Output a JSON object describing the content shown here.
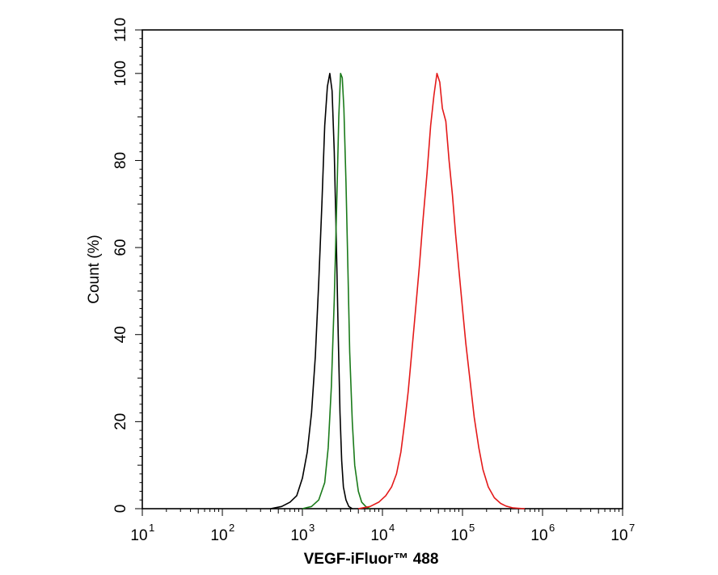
{
  "chart_data": {
    "type": "line",
    "title": "",
    "xlabel": "VEGF-iFluor™ 488",
    "ylabel": "Count  (%)",
    "x_scale": "log",
    "xlim": [
      10,
      10000000
    ],
    "ylim": [
      0,
      110
    ],
    "x_ticks": [
      {
        "base": "10",
        "exp": "1"
      },
      {
        "base": "10",
        "exp": "2"
      },
      {
        "base": "10",
        "exp": "3"
      },
      {
        "base": "10",
        "exp": "4"
      },
      {
        "base": "10",
        "exp": "5"
      },
      {
        "base": "10",
        "exp": "6"
      },
      {
        "base": "10",
        "exp": "7"
      }
    ],
    "y_ticks": [
      "0",
      "20",
      "40",
      "60",
      "80",
      "100",
      "110"
    ],
    "grid": false,
    "series": [
      {
        "color": "#000000",
        "x": [
          400,
          550,
          700,
          850,
          1000,
          1150,
          1300,
          1450,
          1600,
          1750,
          1900,
          2050,
          2200,
          2350,
          2500,
          2650,
          2800,
          2950,
          3100,
          3250,
          3500,
          3800,
          4200
        ],
        "y": [
          0,
          0.5,
          1.5,
          3,
          7,
          13,
          22,
          35,
          52,
          70,
          88,
          97,
          100,
          96,
          82,
          62,
          40,
          22,
          11,
          5,
          2,
          0.5,
          0
        ]
      },
      {
        "color": "#1a7a1a",
        "x": [
          1000,
          1300,
          1600,
          1900,
          2100,
          2300,
          2500,
          2700,
          2850,
          3000,
          3150,
          3300,
          3500,
          3700,
          3900,
          4200,
          4500,
          5000,
          5500,
          6200,
          7000
        ],
        "y": [
          0,
          0.5,
          2,
          6,
          14,
          28,
          48,
          72,
          90,
          100,
          99,
          92,
          75,
          55,
          36,
          20,
          10,
          4,
          1.5,
          0.5,
          0
        ]
      },
      {
        "color": "#e41a1a",
        "x": [
          5000,
          7000,
          9000,
          11000,
          13000,
          15000,
          17000,
          19000,
          21000,
          23000,
          26000,
          29000,
          32000,
          36000,
          40000,
          44000,
          48000,
          52000,
          56000,
          62000,
          68000,
          75000,
          82000,
          90000,
          100000,
          110000,
          125000,
          140000,
          160000,
          180000,
          210000,
          250000,
          300000,
          350000,
          420000,
          500000,
          600000
        ],
        "y": [
          0,
          0.5,
          1.5,
          3,
          5,
          8,
          13,
          20,
          27,
          35,
          46,
          56,
          66,
          77,
          88,
          95,
          100,
          98,
          92,
          89,
          80,
          72,
          63,
          55,
          46,
          38,
          29,
          21,
          14,
          9,
          5,
          2.5,
          1.2,
          0.6,
          0.2,
          0.1,
          0
        ]
      }
    ]
  }
}
